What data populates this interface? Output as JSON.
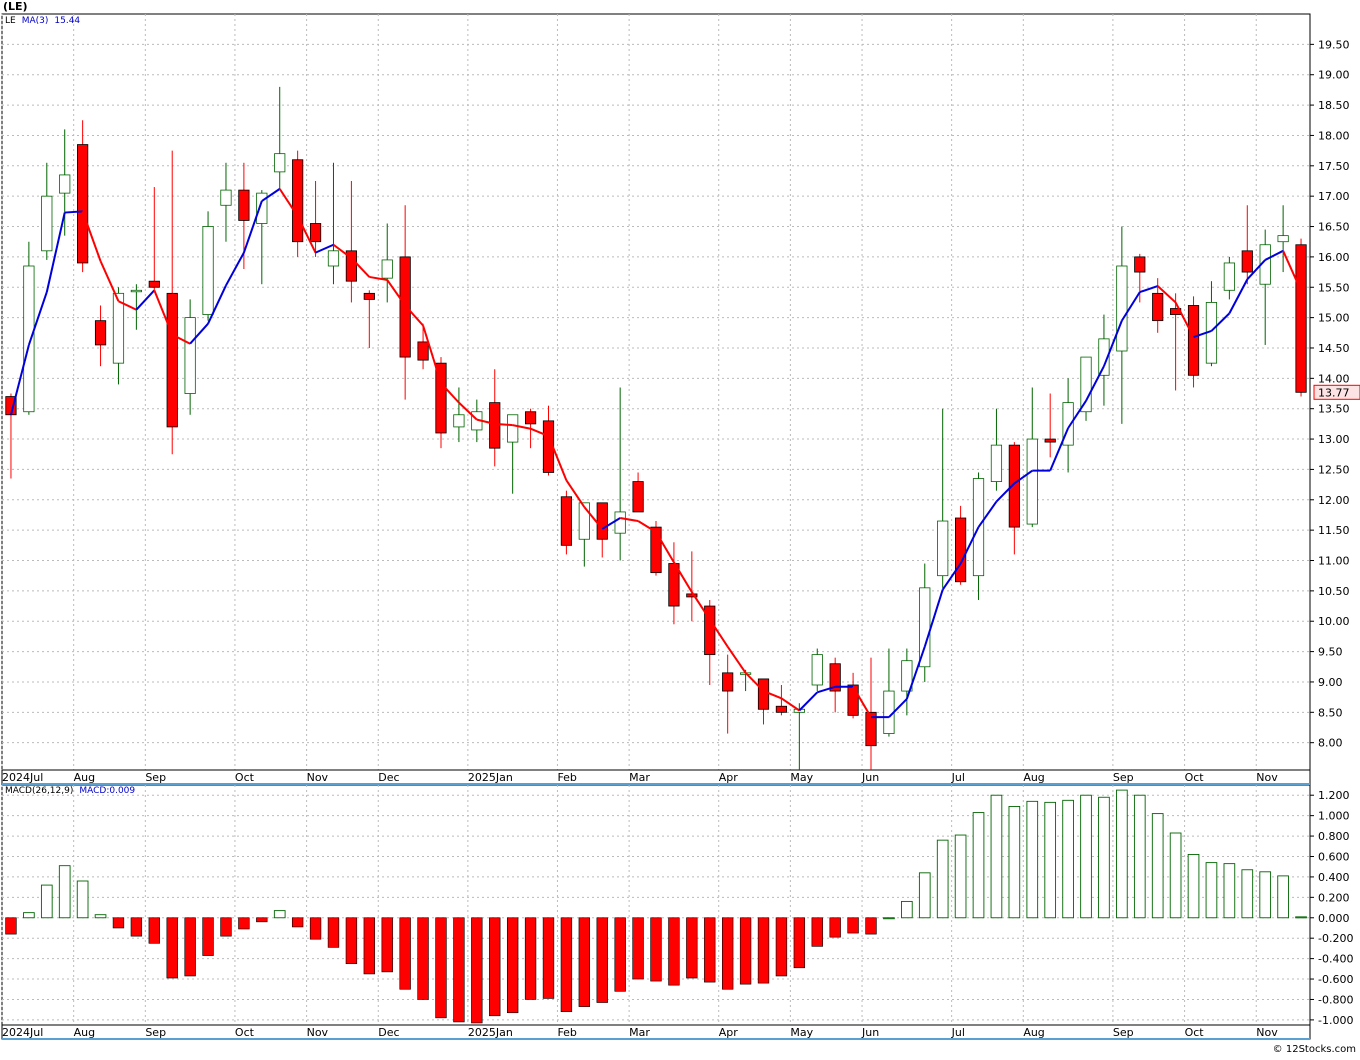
{
  "chart_data": [
    {
      "type": "candlestick",
      "title": "(LE)",
      "legend": [
        "LE",
        "MA(3)",
        "15.44"
      ],
      "last_price_label": "13.77",
      "ylim": [
        7.55,
        20.0
      ],
      "y_ticks": [
        "8.00",
        "8.50",
        "9.00",
        "9.50",
        "10.00",
        "10.50",
        "11.00",
        "11.50",
        "12.00",
        "12.50",
        "13.00",
        "13.50",
        "14.00",
        "14.50",
        "15.00",
        "15.50",
        "16.00",
        "16.50",
        "17.00",
        "17.50",
        "18.00",
        "18.50",
        "19.00",
        "19.50"
      ],
      "x_labels": [
        "2024Jul",
        "Aug",
        "Sep",
        "Oct",
        "Nov",
        "Dec",
        "2025Jan",
        "Feb",
        "Mar",
        "Apr",
        "May",
        "Jun",
        "Jul",
        "Aug",
        "Sep",
        "Oct",
        "Nov"
      ],
      "grid": true,
      "colors": {
        "up": "#006400",
        "down": "#ff0000",
        "ma_up": "#0000dd",
        "ma_down": "#ff0000"
      },
      "ohlc": [
        [
          13.7,
          13.75,
          12.35,
          13.4
        ],
        [
          13.45,
          16.25,
          13.4,
          15.85
        ],
        [
          16.1,
          17.55,
          15.95,
          17.0
        ],
        [
          17.05,
          18.1,
          16.35,
          17.35
        ],
        [
          17.85,
          18.25,
          15.75,
          15.9
        ],
        [
          14.95,
          15.2,
          14.2,
          14.55
        ],
        [
          14.25,
          15.5,
          13.9,
          15.4
        ],
        [
          15.45,
          15.55,
          14.8,
          15.45
        ],
        [
          15.6,
          17.15,
          15.45,
          15.5
        ],
        [
          15.4,
          17.75,
          12.75,
          13.2
        ],
        [
          13.75,
          15.3,
          13.4,
          15.0
        ],
        [
          15.05,
          16.75,
          14.95,
          16.5
        ],
        [
          16.85,
          17.55,
          16.25,
          17.1
        ],
        [
          17.1,
          17.55,
          15.8,
          16.6
        ],
        [
          16.55,
          17.1,
          15.55,
          17.05
        ],
        [
          17.4,
          18.8,
          17.1,
          17.7
        ],
        [
          17.6,
          17.75,
          16.0,
          16.25
        ],
        [
          16.55,
          17.25,
          16.0,
          16.25
        ],
        [
          15.85,
          17.55,
          15.55,
          16.1
        ],
        [
          16.1,
          17.25,
          15.25,
          15.6
        ],
        [
          15.4,
          15.45,
          14.5,
          15.3
        ],
        [
          15.65,
          16.55,
          15.25,
          15.95
        ],
        [
          16.0,
          16.85,
          13.65,
          14.35
        ],
        [
          14.6,
          14.9,
          14.15,
          14.3
        ],
        [
          14.25,
          14.35,
          12.85,
          13.1
        ],
        [
          13.2,
          13.85,
          12.95,
          13.4
        ],
        [
          13.15,
          13.65,
          12.95,
          13.45
        ],
        [
          13.6,
          14.15,
          12.55,
          12.85
        ],
        [
          12.95,
          13.35,
          12.1,
          13.4
        ],
        [
          13.45,
          13.5,
          12.85,
          13.25
        ],
        [
          13.3,
          13.55,
          12.4,
          12.45
        ],
        [
          12.05,
          12.15,
          11.1,
          11.25
        ],
        [
          11.35,
          11.95,
          10.9,
          11.95
        ],
        [
          11.95,
          11.95,
          11.05,
          11.35
        ],
        [
          11.45,
          13.85,
          11.0,
          11.8
        ],
        [
          12.3,
          12.45,
          11.8,
          11.8
        ],
        [
          11.55,
          11.65,
          10.75,
          10.8
        ],
        [
          10.95,
          11.3,
          9.95,
          10.25
        ],
        [
          10.45,
          11.15,
          10.0,
          10.4
        ],
        [
          10.25,
          10.35,
          8.95,
          9.45
        ],
        [
          9.15,
          9.45,
          8.15,
          8.85
        ],
        [
          9.15,
          9.2,
          8.85,
          9.15
        ],
        [
          9.05,
          9.05,
          8.3,
          8.55
        ],
        [
          8.6,
          8.95,
          8.45,
          8.5
        ],
        [
          8.5,
          8.65,
          7.55,
          8.55
        ],
        [
          8.95,
          9.55,
          8.85,
          9.45
        ],
        [
          9.3,
          9.4,
          8.5,
          8.85
        ],
        [
          8.95,
          9.15,
          8.4,
          8.45
        ],
        [
          8.5,
          9.4,
          7.55,
          7.95
        ],
        [
          8.15,
          9.55,
          8.1,
          8.85
        ],
        [
          8.85,
          9.55,
          8.45,
          9.35
        ],
        [
          9.25,
          10.95,
          9.0,
          10.55
        ],
        [
          10.75,
          13.5,
          10.55,
          11.65
        ],
        [
          11.7,
          11.9,
          10.6,
          10.65
        ],
        [
          10.75,
          12.45,
          10.35,
          12.35
        ],
        [
          12.3,
          13.5,
          12.15,
          12.9
        ],
        [
          12.9,
          12.95,
          11.1,
          11.55
        ],
        [
          11.6,
          13.85,
          11.55,
          13.0
        ],
        [
          13.0,
          13.75,
          12.7,
          12.95
        ],
        [
          12.9,
          14.0,
          12.45,
          13.6
        ],
        [
          13.45,
          14.35,
          13.3,
          14.35
        ],
        [
          14.05,
          15.05,
          13.55,
          14.65
        ],
        [
          14.45,
          16.5,
          13.25,
          15.85
        ],
        [
          16.0,
          16.05,
          15.25,
          15.75
        ],
        [
          15.4,
          15.65,
          14.75,
          14.95
        ],
        [
          15.15,
          15.4,
          13.8,
          15.05
        ],
        [
          15.2,
          15.35,
          13.85,
          14.05
        ],
        [
          14.25,
          15.6,
          14.2,
          15.25
        ],
        [
          15.45,
          16.0,
          15.3,
          15.9
        ],
        [
          16.1,
          16.85,
          15.55,
          15.75
        ],
        [
          15.55,
          16.45,
          14.55,
          16.2
        ],
        [
          16.25,
          16.85,
          15.75,
          16.35
        ],
        [
          16.2,
          16.3,
          13.7,
          13.77
        ]
      ],
      "ma3": [
        13.4,
        14.55,
        15.42,
        16.73,
        16.75,
        15.93,
        15.27,
        15.13,
        15.45,
        14.72,
        14.57,
        14.9,
        15.53,
        16.07,
        16.92,
        17.12,
        16.67,
        16.07,
        16.2,
        15.98,
        15.67,
        15.62,
        15.2,
        14.87,
        13.92,
        13.6,
        13.32,
        13.25,
        13.23,
        13.17,
        13.05,
        12.32,
        11.88,
        11.52,
        11.7,
        11.65,
        11.47,
        10.97,
        10.48,
        10.03,
        9.58,
        9.15,
        8.85,
        8.73,
        8.53,
        8.83,
        8.92,
        8.92,
        8.42,
        8.42,
        8.72,
        9.58,
        10.52,
        10.95,
        11.55,
        11.97,
        12.27,
        12.48,
        12.48,
        13.18,
        13.63,
        14.2,
        14.95,
        15.42,
        15.52,
        15.25,
        14.68,
        14.78,
        15.07,
        15.63,
        15.95,
        16.1,
        15.44
      ]
    },
    {
      "type": "bar",
      "title": "MACD(26,12,9)",
      "legend": [
        "MACD(26,12,9)",
        "MACD:0.009"
      ],
      "ylim": [
        -1.05,
        1.3
      ],
      "y_ticks": [
        "-1.000",
        "-0.800",
        "-0.600",
        "-0.400",
        "-0.200",
        "0.000",
        "0.200",
        "0.400",
        "0.600",
        "0.800",
        "1.000",
        "1.200"
      ],
      "x_labels": [
        "2024Jul",
        "Aug",
        "Sep",
        "Oct",
        "Nov",
        "Dec",
        "2025Jan",
        "Feb",
        "Mar",
        "Apr",
        "May",
        "Jun",
        "Jul",
        "Aug",
        "Sep",
        "Oct",
        "Nov"
      ],
      "grid": true,
      "colors": {
        "positive": "#006400",
        "negative": "#ff0000"
      },
      "values": [
        -0.16,
        0.05,
        0.32,
        0.51,
        0.36,
        0.03,
        -0.1,
        -0.18,
        -0.25,
        -0.59,
        -0.57,
        -0.37,
        -0.18,
        -0.11,
        -0.04,
        0.07,
        -0.09,
        -0.21,
        -0.29,
        -0.45,
        -0.55,
        -0.53,
        -0.7,
        -0.8,
        -0.98,
        -1.02,
        -1.03,
        -0.96,
        -0.93,
        -0.8,
        -0.79,
        -0.92,
        -0.87,
        -0.83,
        -0.72,
        -0.6,
        -0.62,
        -0.66,
        -0.59,
        -0.63,
        -0.7,
        -0.65,
        -0.64,
        -0.57,
        -0.49,
        -0.28,
        -0.19,
        -0.15,
        -0.16,
        0.0,
        0.16,
        0.44,
        0.76,
        0.81,
        1.03,
        1.2,
        1.09,
        1.14,
        1.13,
        1.15,
        1.2,
        1.18,
        1.25,
        1.2,
        1.02,
        0.83,
        0.62,
        0.54,
        0.53,
        0.47,
        0.45,
        0.41,
        0.009
      ]
    }
  ],
  "footer": "© 12Stocks.com"
}
